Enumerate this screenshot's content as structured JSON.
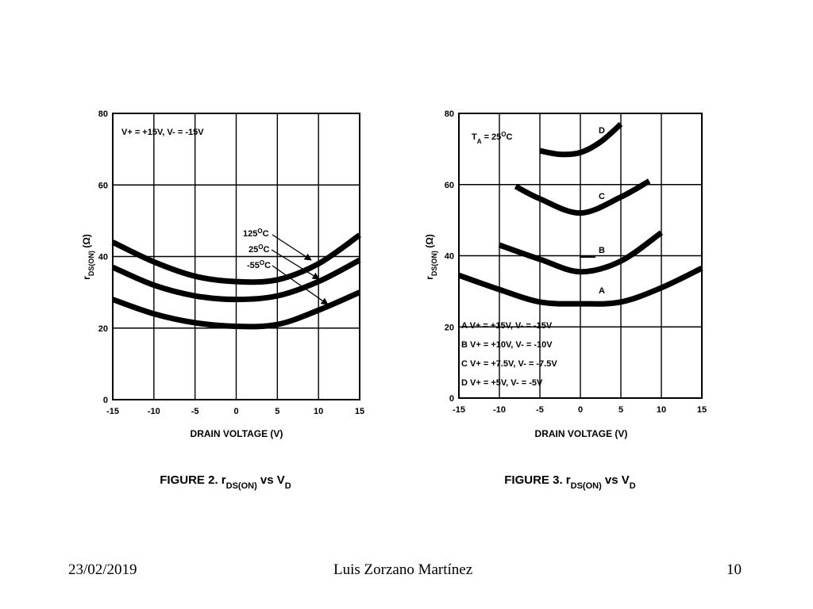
{
  "chart_data": [
    {
      "type": "line",
      "ylabel": "rDS(ON) (Ω)",
      "ylabel_main": "r",
      "ylabel_sub": "DS(ON)",
      "ylabel_unit": " (Ω)",
      "xlabel": "DRAIN VOLTAGE (V)",
      "xlim": [
        -15,
        15
      ],
      "ylim": [
        0,
        80
      ],
      "x_ticks": [
        "-15",
        "-10",
        "-5",
        "0",
        "5",
        "10",
        "15"
      ],
      "y_ticks": [
        "0",
        "20",
        "40",
        "60",
        "80"
      ],
      "grid": true,
      "condition": "V+ = +15V, V- = -15V",
      "caption_prefix": "FIGURE 2.",
      "caption_r": "r",
      "caption_r_sub": "DS(ON)",
      "caption_vs": " vs V",
      "caption_v_sub": "D",
      "series": [
        {
          "name": "125°C",
          "label_main": "125",
          "label_sup": "O",
          "label_unit": "C",
          "x": [
            -15,
            -10,
            -5,
            0,
            5,
            10,
            15
          ],
          "y": [
            44,
            38.5,
            34.5,
            33,
            33.5,
            38,
            46
          ]
        },
        {
          "name": "25°C",
          "label_main": "25",
          "label_sup": "O",
          "label_unit": "C",
          "x": [
            -15,
            -10,
            -5,
            0,
            5,
            10,
            15
          ],
          "y": [
            37,
            32,
            29,
            28,
            29,
            33,
            39
          ]
        },
        {
          "name": "-55°C",
          "label_main": "-55",
          "label_sup": "O",
          "label_unit": "C",
          "x": [
            -15,
            -10,
            -5,
            0,
            5,
            10,
            15
          ],
          "y": [
            28,
            24,
            21.5,
            20.5,
            21,
            25,
            30
          ]
        }
      ]
    },
    {
      "type": "line",
      "ylabel": "rDS(ON) (Ω)",
      "ylabel_main": "r",
      "ylabel_sub": "DS(ON)",
      "ylabel_unit": " (Ω)",
      "xlabel": "DRAIN VOLTAGE (V)",
      "xlim": [
        -15,
        15
      ],
      "ylim": [
        0,
        80
      ],
      "x_ticks": [
        "-15",
        "-10",
        "-5",
        "0",
        "5",
        "10",
        "15"
      ],
      "y_ticks": [
        "0",
        "20",
        "40",
        "60",
        "80"
      ],
      "grid": true,
      "condition_main": "T",
      "condition_sub": "A",
      "condition_rest": " = 25",
      "condition_sup": "O",
      "condition_unit": "C",
      "caption_prefix": "FIGURE 3.",
      "caption_r": "r",
      "caption_r_sub": "DS(ON)",
      "caption_vs": " vs V",
      "caption_v_sub": "D",
      "legend": [
        {
          "key": "A",
          "text": "V+ = +15V, V- = -15V"
        },
        {
          "key": "B",
          "text": "V+ = +10V, V- = -10V"
        },
        {
          "key": "C",
          "text": "V+ = +7.5V, V- = -7.5V"
        },
        {
          "key": "D",
          "text": "V+ = +5V, V- = -5V"
        }
      ],
      "series": [
        {
          "name": "A",
          "x": [
            -15,
            -10,
            -5,
            0,
            5,
            10,
            15
          ],
          "y": [
            34.5,
            30.5,
            27,
            26.5,
            27,
            31,
            36.5
          ]
        },
        {
          "name": "B",
          "x": [
            -10,
            -5,
            0,
            5,
            10
          ],
          "y": [
            43,
            39,
            35.5,
            38.5,
            46.5
          ]
        },
        {
          "name": "C",
          "x": [
            -8,
            -5,
            0,
            5,
            8.5
          ],
          "y": [
            59.5,
            56,
            52,
            56.5,
            61
          ]
        },
        {
          "name": "D",
          "x": [
            -5,
            -2.5,
            0,
            2.5,
            5
          ],
          "y": [
            69.5,
            68.5,
            69,
            72,
            77
          ]
        }
      ]
    }
  ],
  "footer": {
    "date": "23/02/2019",
    "author": "Luis Zorzano Martínez",
    "page": "10"
  }
}
